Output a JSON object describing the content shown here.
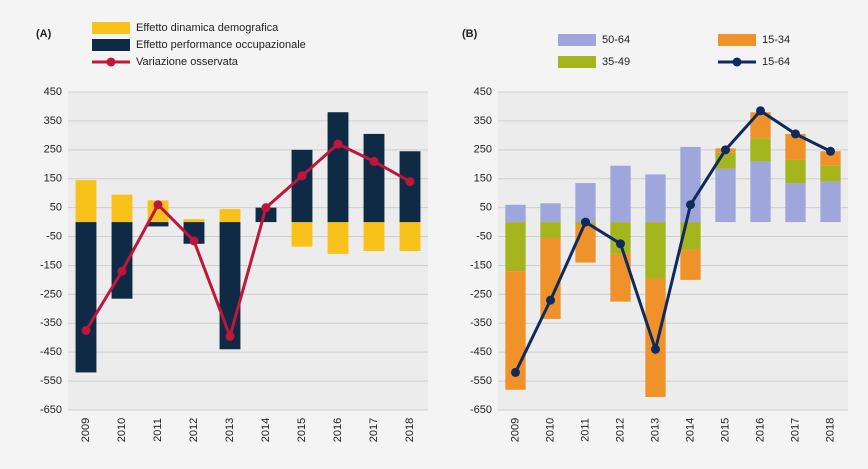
{
  "chart_data": [
    {
      "type": "bar",
      "stacked": true,
      "title": "(A)",
      "categories": [
        "2009",
        "2010",
        "2011",
        "2012",
        "2013",
        "2014",
        "2015",
        "2016",
        "2017",
        "2018"
      ],
      "ylim": [
        -650,
        450
      ],
      "yticks": [
        450,
        350,
        250,
        150,
        50,
        -50,
        -150,
        -250,
        -350,
        -450,
        -550,
        -650
      ],
      "grid": true,
      "series": [
        {
          "name": "Effetto dinamica demografica",
          "kind": "bar",
          "color": "#f9c21b",
          "values": [
            145,
            95,
            75,
            10,
            45,
            0,
            -85,
            -110,
            -100,
            -100
          ]
        },
        {
          "name": "Effetto performance occupazionale",
          "kind": "bar",
          "color": "#0f2a44",
          "values": [
            -520,
            -265,
            -15,
            -75,
            -440,
            50,
            250,
            380,
            305,
            245
          ]
        },
        {
          "name": "Variazione osservata",
          "kind": "line",
          "color": "#c0163c",
          "values": [
            -375,
            -170,
            60,
            -65,
            -395,
            50,
            160,
            270,
            210,
            140
          ]
        }
      ]
    },
    {
      "type": "bar",
      "stacked": true,
      "title": "(B)",
      "categories": [
        "2009",
        "2010",
        "2011",
        "2012",
        "2013",
        "2014",
        "2015",
        "2016",
        "2017",
        "2018"
      ],
      "ylim": [
        -650,
        450
      ],
      "yticks": [
        450,
        350,
        250,
        150,
        50,
        -50,
        -150,
        -250,
        -350,
        -450,
        -550,
        -650
      ],
      "grid": true,
      "series": [
        {
          "name": "50-64",
          "kind": "bar",
          "color": "#9fa6dc",
          "values": [
            60,
            65,
            135,
            195,
            165,
            260,
            185,
            210,
            135,
            140
          ]
        },
        {
          "name": "35-49",
          "kind": "bar",
          "color": "#a4b51e",
          "values": [
            -170,
            -55,
            -10,
            -110,
            -195,
            -95,
            55,
            80,
            80,
            55
          ]
        },
        {
          "name": "15-34",
          "kind": "bar",
          "color": "#f0922a",
          "values": [
            -410,
            -280,
            -130,
            -165,
            -410,
            -105,
            15,
            90,
            90,
            50
          ]
        },
        {
          "name": "15-64",
          "kind": "line",
          "color": "#0f2a5c",
          "values": [
            -520,
            -270,
            0,
            -75,
            -440,
            60,
            250,
            385,
            305,
            245
          ]
        }
      ]
    }
  ]
}
